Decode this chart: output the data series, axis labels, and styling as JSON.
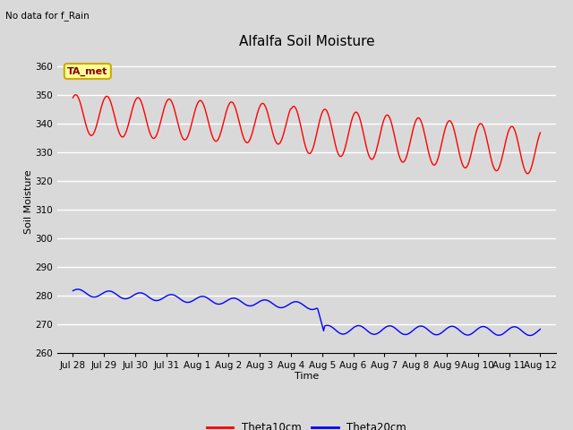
{
  "title": "Alfalfa Soil Moisture",
  "top_left_text": "No data for f_Rain",
  "xlabel": "Time",
  "ylabel": "Soil Moisture",
  "ylim": [
    260,
    365
  ],
  "yticks": [
    260,
    270,
    280,
    290,
    300,
    310,
    320,
    330,
    340,
    350,
    360
  ],
  "x_labels": [
    "Jul 28",
    "Jul 29",
    "Jul 30",
    "Jul 31",
    "Aug 1",
    "Aug 2",
    "Aug 3",
    "Aug 4",
    "Aug 5",
    "Aug 6",
    "Aug 7",
    "Aug 8",
    "Aug 9",
    "Aug 10",
    "Aug 11",
    "Aug 12"
  ],
  "background_color": "#d9d9d9",
  "plot_bg_color": "#d9d9d9",
  "grid_color": "#ffffff",
  "annotation_text": "TA_met",
  "annotation_bg": "#ffff99",
  "annotation_border": "#ccaa00",
  "line1_color": "#ff0000",
  "line2_color": "#0000ff",
  "legend_label1": "Theta10cm",
  "legend_label2": "Theta20cm",
  "title_fontsize": 11,
  "axis_fontsize": 8,
  "tick_fontsize": 7.5
}
